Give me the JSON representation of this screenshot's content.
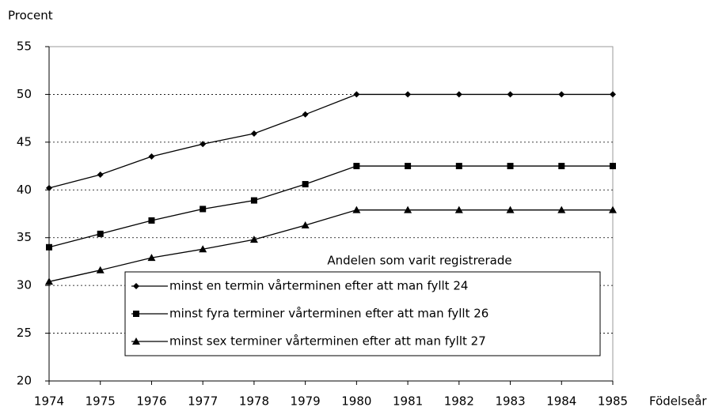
{
  "chart_data": {
    "type": "line",
    "y_label": "Procent",
    "x_label": "Födelseår",
    "legend_title": "Andelen som varit registrerade",
    "legend": "lower right",
    "grid": true,
    "categories": [
      "1974",
      "1975",
      "1976",
      "1977",
      "1978",
      "1979",
      "1980",
      "1981",
      "1982",
      "1983",
      "1984",
      "1985"
    ],
    "ylim": [
      20,
      55
    ],
    "yticks": [
      20,
      25,
      30,
      35,
      40,
      45,
      50,
      55
    ],
    "series": [
      {
        "name": "minst en termin vårterminen efter att man fyllt 24",
        "color": "#000000",
        "marker": "diamond",
        "values": [
          40.2,
          41.6,
          43.5,
          44.8,
          45.9,
          47.9,
          50,
          50,
          50,
          50,
          50,
          50
        ]
      },
      {
        "name": "minst fyra terminer vårterminen efter att man fyllt 26",
        "color": "#000000",
        "marker": "square",
        "values": [
          34.0,
          35.4,
          36.8,
          38.0,
          38.9,
          40.6,
          42.5,
          42.5,
          42.5,
          42.5,
          42.5,
          42.5
        ]
      },
      {
        "name": "minst sex terminer vårterminen efter att man fyllt 27",
        "color": "#000000",
        "marker": "triangle",
        "values": [
          30.4,
          31.6,
          32.9,
          33.8,
          34.8,
          36.3,
          37.9,
          37.9,
          37.9,
          37.9,
          37.9,
          37.9
        ]
      }
    ]
  }
}
